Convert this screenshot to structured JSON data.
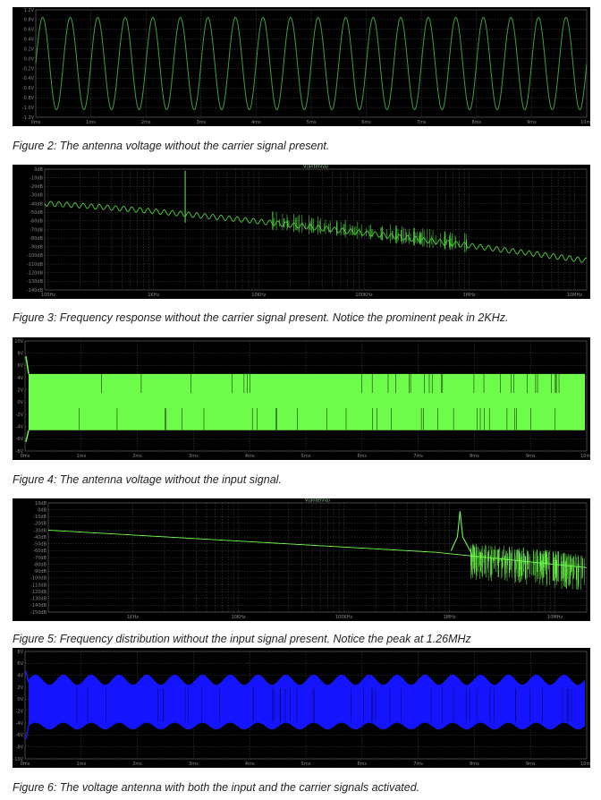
{
  "figures": [
    {
      "id": "fig2",
      "caption": "Figure 2: The antenna voltage without the carrier signal present.",
      "trace_label": "",
      "y_ticks": [
        "1.2V",
        "0.8V",
        "0.6V",
        "0.4V",
        "0.2V",
        "0.0V",
        "-0.2V",
        "-0.4V",
        "-0.6V",
        "-0.8V",
        "-1.0V",
        "-1.2V"
      ],
      "x_ticks": [
        "0ms",
        "1ms",
        "2ms",
        "3ms",
        "4ms",
        "5ms",
        "6ms",
        "7ms",
        "8ms",
        "9ms",
        "10ms"
      ],
      "trace_color": "#3f9e3f"
    },
    {
      "id": "fig3",
      "caption": "Figure 3: Frequency response without the carrier signal present. Notice the prominent peak in 2KHz.",
      "trace_label": "V(antenna)",
      "y_ticks": [
        "0dB",
        "-10dB",
        "-20dB",
        "-30dB",
        "-40dB",
        "-50dB",
        "-60dB",
        "-70dB",
        "-80dB",
        "-90dB",
        "-100dB",
        "-110dB",
        "-120dB",
        "-130dB",
        "-140dB"
      ],
      "x_ticks": [
        "100Hz",
        "1KHz",
        "10KHz",
        "100KHz",
        "1MHz",
        "10MHz"
      ],
      "trace_color": "#4fcf3f"
    },
    {
      "id": "fig4",
      "caption": "Figure 4: The antenna voltage without the input signal.",
      "trace_label": "",
      "y_ticks": [
        "10V",
        "8V",
        "6V",
        "4V",
        "2V",
        "0V",
        "-2V",
        "-4V",
        "-6V",
        "-8V"
      ],
      "x_ticks": [
        "0ms",
        "1ms",
        "2ms",
        "3ms",
        "4ms",
        "5ms",
        "6ms",
        "7ms",
        "8ms",
        "9ms",
        "10ms"
      ],
      "trace_color": "#6dfc4a"
    },
    {
      "id": "fig5",
      "caption": "Figure 5: Frequency distribution without the input signal present. Notice the peak at 1.26MHz",
      "trace_label": "V(antenna)",
      "y_ticks": [
        "10dB",
        "0dB",
        "-10dB",
        "-20dB",
        "-30dB",
        "-40dB",
        "-50dB",
        "-60dB",
        "-70dB",
        "-80dB",
        "-90dB",
        "-100dB",
        "-110dB",
        "-120dB",
        "-130dB",
        "-140dB",
        "-150dB"
      ],
      "x_ticks": [
        "1KHz",
        "10KHz",
        "100KHz",
        "1MHz",
        "10MHz"
      ],
      "trace_color": "#6dfc4a"
    },
    {
      "id": "fig6",
      "caption": "Figure 6: The voltage antenna with both the input and the carrier signals activated.",
      "trace_label": "",
      "y_ticks": [
        "8V",
        "6V",
        "4V",
        "2V",
        "0V",
        "-2V",
        "-4V",
        "-6V",
        "-8V",
        "-10V"
      ],
      "x_ticks": [
        "0ms",
        "1ms",
        "2ms",
        "3ms",
        "4ms",
        "5ms",
        "6ms",
        "7ms",
        "8ms",
        "9ms",
        "10ms"
      ],
      "trace_color": "#1414ff"
    }
  ]
}
